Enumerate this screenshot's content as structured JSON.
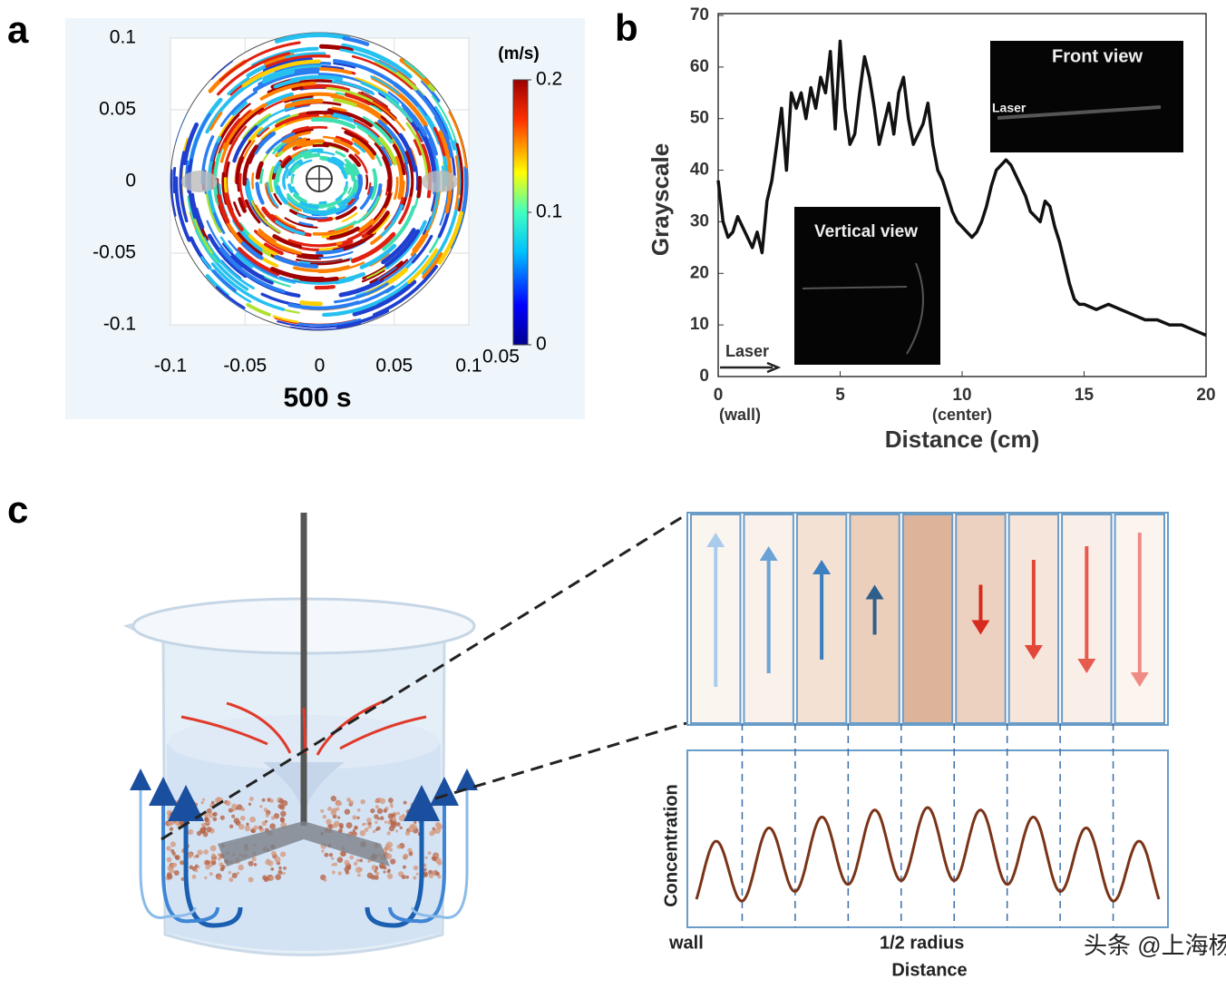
{
  "panel_labels": [
    "a",
    "b",
    "c"
  ],
  "panel_a": {
    "xlim": [
      -0.1,
      0.1
    ],
    "ylim": [
      -0.1,
      0.1
    ],
    "xticks": [
      -0.1,
      -0.05,
      0,
      0.05,
      0.1
    ],
    "yticks": [
      -0.1,
      -0.05,
      0,
      0.05,
      0.1
    ],
    "colorbar_unit": "(m/s)",
    "colorbar_lim": [
      0,
      0.2
    ],
    "colorbar_ticks": [
      0,
      0.1,
      0.2
    ],
    "colorbar_bottom_label": "0.05",
    "time_label": "500 s"
  },
  "chart_data": {
    "type": "line",
    "x": [
      0,
      0.2,
      0.4,
      0.6,
      0.8,
      1,
      1.2,
      1.4,
      1.6,
      1.8,
      2,
      2.2,
      2.4,
      2.6,
      2.8,
      3,
      3.2,
      3.4,
      3.6,
      3.8,
      4,
      4.2,
      4.4,
      4.6,
      4.8,
      5,
      5.2,
      5.4,
      5.6,
      5.8,
      6,
      6.2,
      6.4,
      6.6,
      6.8,
      7,
      7.2,
      7.4,
      7.6,
      7.8,
      8,
      8.2,
      8.4,
      8.6,
      8.8,
      9,
      9.2,
      9.4,
      9.6,
      9.8,
      10,
      10.2,
      10.4,
      10.6,
      10.8,
      11,
      11.2,
      11.4,
      11.6,
      11.8,
      12,
      12.2,
      12.4,
      12.6,
      12.8,
      13,
      13.2,
      13.4,
      13.6,
      13.8,
      14,
      14.2,
      14.4,
      14.6,
      14.8,
      15,
      15.5,
      16,
      16.5,
      17,
      17.5,
      18,
      18.5,
      19,
      19.5,
      20
    ],
    "series": [
      {
        "color": "#111111",
        "values": [
          38,
          30,
          27,
          28,
          31,
          29,
          27,
          25,
          28,
          24,
          34,
          38,
          45,
          52,
          40,
          55,
          52,
          55,
          50,
          56,
          52,
          58,
          55,
          63,
          48,
          65,
          52,
          45,
          47,
          55,
          62,
          58,
          52,
          45,
          49,
          53,
          47,
          55,
          58,
          50,
          45,
          47,
          49,
          53,
          45,
          40,
          38,
          35,
          32,
          30,
          29,
          28,
          27,
          28,
          30,
          33,
          37,
          40,
          41,
          42,
          41,
          39,
          37,
          35,
          32,
          31,
          30,
          34,
          33,
          29,
          26,
          22,
          18,
          15,
          14,
          14,
          13,
          14,
          13,
          12,
          11,
          11,
          10,
          10,
          9,
          8
        ]
      }
    ],
    "xlim": [
      0,
      20
    ],
    "ylim": [
      0,
      70
    ],
    "xticks": [
      0,
      5,
      10,
      15,
      20
    ],
    "yticks": [
      0,
      10,
      20,
      30,
      40,
      50,
      60,
      70
    ],
    "x_tick_sublabels": [
      "(wall)",
      null,
      "(center)",
      null,
      null
    ],
    "xlabel": "Distance (cm)",
    "ylabel": "Grayscale",
    "insets": [
      {
        "title": "Front view",
        "label": "Laser"
      },
      {
        "title": "Vertical view"
      }
    ],
    "arrow_label": "Laser"
  },
  "panel_c": {
    "y_label": "Concentration",
    "x_labels": [
      "wall",
      "1/2 radius"
    ],
    "x_title": "Distance"
  },
  "watermark": "头条 @上海杨浦"
}
